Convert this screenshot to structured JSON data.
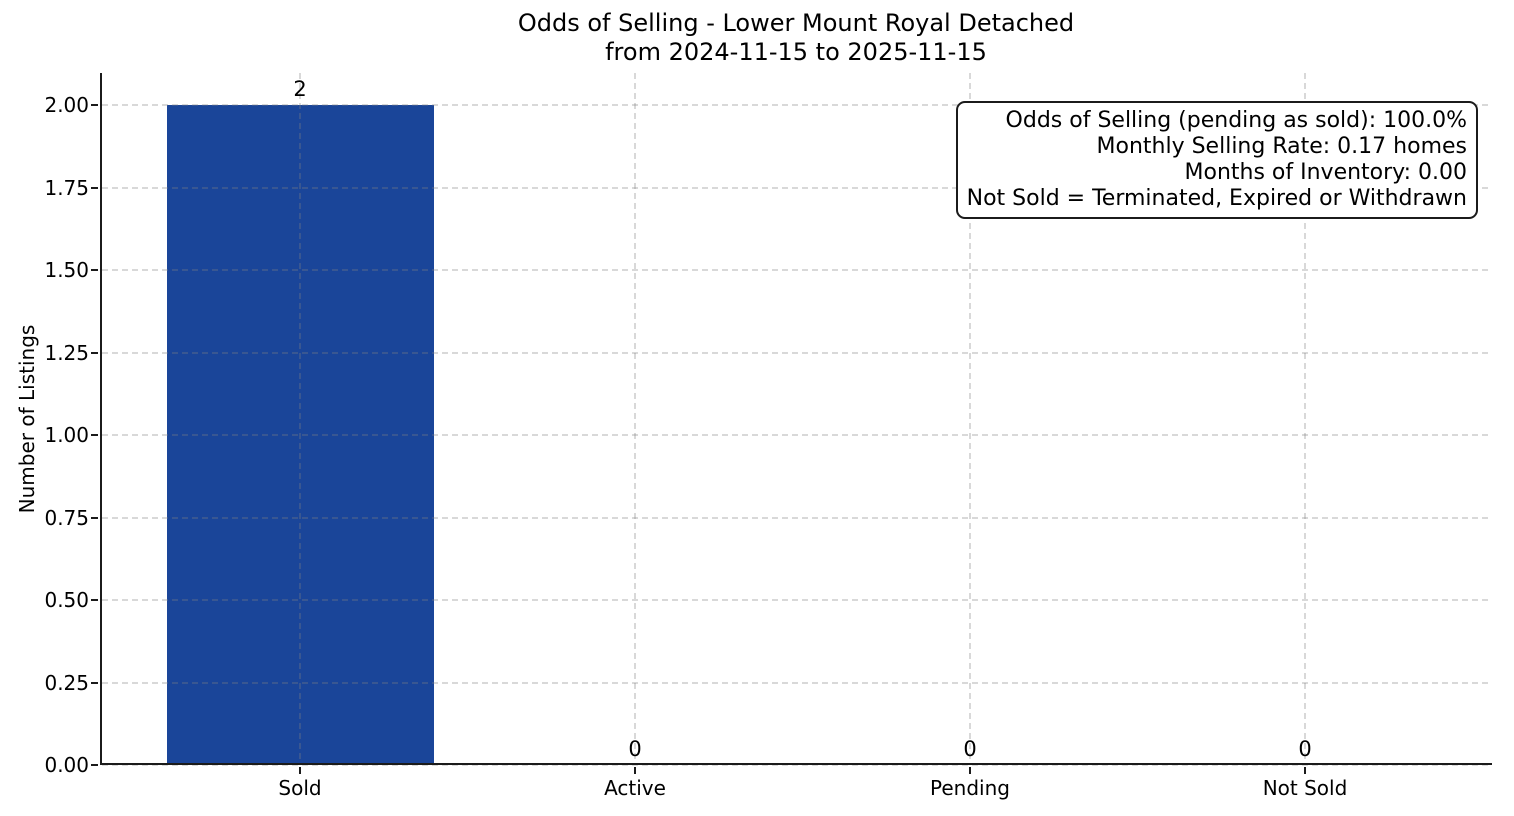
{
  "chart_data": {
    "type": "bar",
    "title": "Odds of Selling - Lower Mount Royal Detached",
    "subtitle": "from 2024-11-15 to 2025-11-15",
    "categories": [
      "Sold",
      "Active",
      "Pending",
      "Not Sold"
    ],
    "values": [
      2,
      0,
      0,
      0
    ],
    "bar_value_labels": [
      "2",
      "0",
      "0",
      "0"
    ],
    "xlabel": "",
    "ylabel": "Number of Listings",
    "ylim": [
      0,
      2.1
    ],
    "ytick_values": [
      0.0,
      0.25,
      0.5,
      0.75,
      1.0,
      1.25,
      1.5,
      1.75,
      2.0
    ],
    "ytick_labels": [
      "0.00",
      "0.25",
      "0.50",
      "0.75",
      "1.00",
      "1.25",
      "1.50",
      "1.75",
      "2.00"
    ],
    "grid": "dashed-both-axes",
    "legend": "none",
    "bar_color": "#1a4599",
    "annotation_lines": [
      "Odds of Selling (pending as sold): 100.0%",
      "Monthly Selling Rate: 0.17 homes",
      "Months of Inventory: 0.00",
      "Not Sold = Terminated, Expired or Withdrawn"
    ]
  }
}
